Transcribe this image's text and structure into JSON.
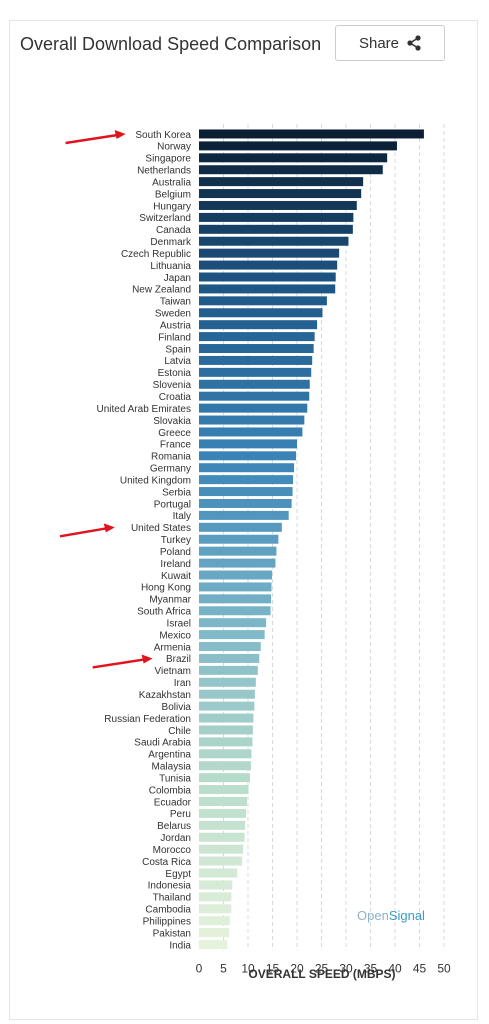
{
  "header": {
    "title": "Overall Download Speed Comparison",
    "share_label": "Share"
  },
  "brand": {
    "open": "Open",
    "signal": "Signal"
  },
  "annotations": {
    "arrow_color": "#e0141e",
    "arrows_point_to": [
      "South Korea",
      "United States",
      "Brazil"
    ]
  },
  "chart_data": {
    "type": "bar",
    "orientation": "horizontal",
    "title": "Overall Download Speed Comparison",
    "xlabel": "OVERALL SPEED (MBPS)",
    "ylabel": "",
    "xlim": [
      0,
      50
    ],
    "xticks": [
      0,
      5,
      10,
      15,
      20,
      25,
      30,
      35,
      40,
      45,
      50
    ],
    "grid": "vertical dashed",
    "color_scale": [
      "#0b1e33",
      "#1f5a8a",
      "#3a84b8",
      "#7bb6c8",
      "#b9dccb",
      "#e6f3dc"
    ],
    "categories": [
      "South Korea",
      "Norway",
      "Singapore",
      "Netherlands",
      "Australia",
      "Belgium",
      "Hungary",
      "Switzerland",
      "Canada",
      "Denmark",
      "Czech Republic",
      "Lithuania",
      "Japan",
      "New Zealand",
      "Taiwan",
      "Sweden",
      "Austria",
      "Finland",
      "Spain",
      "Latvia",
      "Estonia",
      "Slovenia",
      "Croatia",
      "United Arab Emirates",
      "Slovakia",
      "Greece",
      "France",
      "Romania",
      "Germany",
      "United Kingdom",
      "Serbia",
      "Portugal",
      "Italy",
      "United States",
      "Turkey",
      "Poland",
      "Ireland",
      "Kuwait",
      "Hong Kong",
      "Myanmar",
      "South Africa",
      "Israel",
      "Mexico",
      "Armenia",
      "Brazil",
      "Vietnam",
      "Iran",
      "Kazakhstan",
      "Bolivia",
      "Russian Federation",
      "Chile",
      "Saudi Arabia",
      "Argentina",
      "Malaysia",
      "Tunisia",
      "Colombia",
      "Ecuador",
      "Peru",
      "Belarus",
      "Jordan",
      "Morocco",
      "Costa Rica",
      "Egypt",
      "Indonesia",
      "Thailand",
      "Cambodia",
      "Philippines",
      "Pakistan",
      "India"
    ],
    "values": [
      45.9,
      40.4,
      38.4,
      37.5,
      33.5,
      33.1,
      32.2,
      31.5,
      31.4,
      30.5,
      28.6,
      28.2,
      27.9,
      27.8,
      26.1,
      25.2,
      24.1,
      23.6,
      23.4,
      23.1,
      22.9,
      22.6,
      22.5,
      22.1,
      21.5,
      21.1,
      20.0,
      19.8,
      19.4,
      19.2,
      19.1,
      18.9,
      18.3,
      16.9,
      16.2,
      15.8,
      15.6,
      14.9,
      14.8,
      14.7,
      14.6,
      13.7,
      13.4,
      12.6,
      12.3,
      12.0,
      11.6,
      11.4,
      11.3,
      11.1,
      11.0,
      10.9,
      10.7,
      10.6,
      10.4,
      10.1,
      9.8,
      9.6,
      9.4,
      9.3,
      9.0,
      8.8,
      7.8,
      6.8,
      6.6,
      6.6,
      6.3,
      6.2,
      5.8
    ]
  }
}
